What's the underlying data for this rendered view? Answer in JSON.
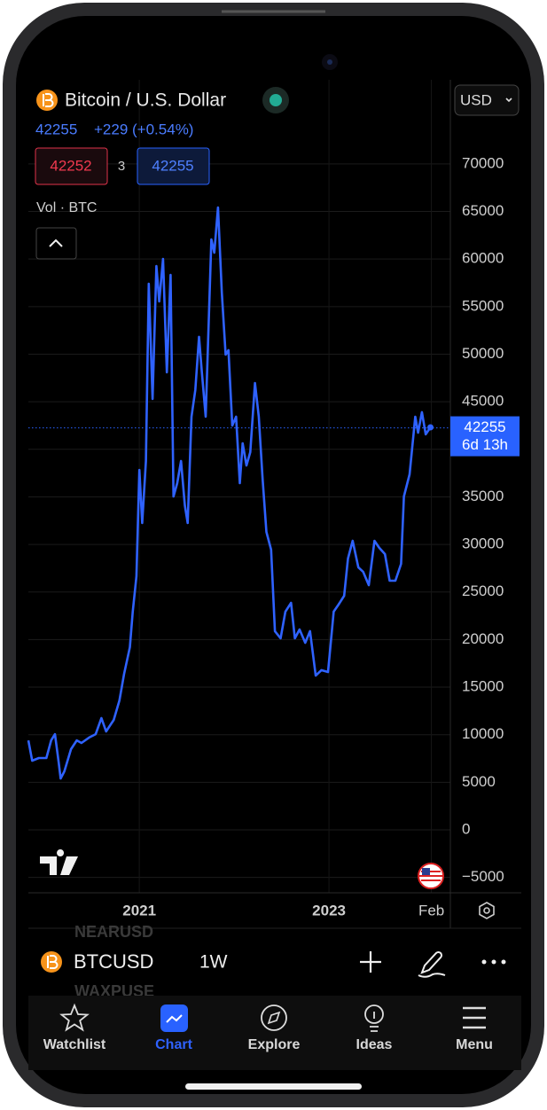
{
  "header": {
    "symbol_name": "Bitcoin / U.S. Dollar",
    "last": "42255",
    "change": "+229 (+0.54%)",
    "bid": "42252",
    "spread": "3",
    "ask": "42255",
    "volume_label": "Vol · BTC",
    "currency": "USD"
  },
  "chart_data": {
    "type": "line",
    "color": "#2f62ff",
    "x": [
      2019.83,
      2019.87,
      2019.94,
      2020.02,
      2020.07,
      2020.11,
      2020.15,
      2020.17,
      2020.21,
      2020.28,
      2020.34,
      2020.39,
      2020.47,
      2020.54,
      2020.6,
      2020.65,
      2020.73,
      2020.79,
      2020.84,
      2020.9,
      2020.93,
      2020.97,
      2021.0,
      2021.03,
      2021.07,
      2021.1,
      2021.14,
      2021.18,
      2021.21,
      2021.25,
      2021.29,
      2021.33,
      2021.36,
      2021.4,
      2021.44,
      2021.48,
      2021.51,
      2021.55,
      2021.59,
      2021.63,
      2021.66,
      2021.7,
      2021.76,
      2021.79,
      2021.83,
      2021.87,
      2021.91,
      2021.94,
      2021.98,
      2022.02,
      2022.06,
      2022.09,
      2022.13,
      2022.17,
      2022.22,
      2022.26,
      2022.3,
      2022.34,
      2022.39,
      2022.43,
      2022.49,
      2022.54,
      2022.6,
      2022.64,
      2022.69,
      2022.75,
      2022.8,
      2022.86,
      2022.92,
      2022.99,
      2023.05,
      2023.1,
      2023.16,
      2023.2,
      2023.25,
      2023.31,
      2023.36,
      2023.42,
      2023.48,
      2023.53,
      2023.59,
      2023.64,
      2023.7,
      2023.76,
      2023.79,
      2023.85,
      2023.91,
      2023.94,
      2023.98,
      2024.02,
      2024.07
    ],
    "values": [
      9400,
      7270,
      7550,
      7550,
      9400,
      10060,
      7080,
      5400,
      6150,
      8480,
      9400,
      9130,
      9700,
      10060,
      11740,
      10340,
      11560,
      13600,
      16400,
      19200,
      22900,
      26650,
      37840,
      32250,
      38770,
      57400,
      45290,
      59270,
      55540,
      60020,
      48090,
      58340,
      35040,
      36440,
      38770,
      34110,
      32250,
      43430,
      46230,
      51820,
      48090,
      43430,
      62070,
      60670,
      65420,
      56480,
      49950,
      50420,
      42500,
      43430,
      36440,
      40630,
      38300,
      39700,
      46970,
      43430,
      36900,
      31310,
      29450,
      20880,
      20130,
      22930,
      23860,
      20130,
      21060,
      19660,
      20880,
      16220,
      16780,
      16590,
      22930,
      23670,
      24600,
      28520,
      30380,
      27590,
      27130,
      25720,
      30380,
      29640,
      28980,
      26190,
      26190,
      27960,
      35040,
      37370,
      43430,
      41750,
      43900,
      41570,
      42310
    ],
    "xlim": [
      2019.83,
      2024.28
    ],
    "xticks": [
      2021,
      2023,
      {
        "value": 2024.08,
        "label": "Feb"
      }
    ],
    "ylim": [
      -6430,
      78840
    ],
    "yticks": [
      {
        "value": -5000,
        "label": "−5000"
      },
      0,
      5000,
      10000,
      15000,
      20000,
      25000,
      30000,
      35000,
      40000,
      45000,
      50000,
      55000,
      60000,
      65000,
      70000
    ],
    "grid": true,
    "current_price": 42255,
    "countdown": "6d 13h"
  },
  "toolbar": {
    "symbol": "BTCUSD",
    "interval": "1W",
    "faded_above": "NEARUSD",
    "faded_below": "WAXPUSE"
  },
  "tabs": [
    "Watchlist",
    "Chart",
    "Explore",
    "Ideas",
    "Menu"
  ]
}
